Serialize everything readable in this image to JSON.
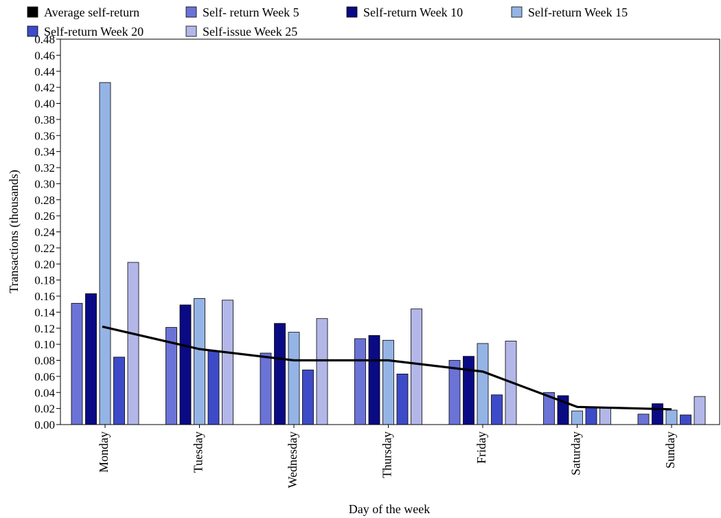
{
  "chart_data": {
    "type": "bar",
    "title": "",
    "xlabel": "Day of the week",
    "ylabel": "Transactions (thousands)",
    "ylim": [
      0,
      0.48
    ],
    "yticks": [
      "0.00",
      "0.02",
      "0.04",
      "0.06",
      "0.08",
      "0.10",
      "0.12",
      "0.14",
      "0.16",
      "0.18",
      "0.20",
      "0.22",
      "0.24",
      "0.26",
      "0.28",
      "0.30",
      "0.32",
      "0.34",
      "0.36",
      "0.38",
      "0.40",
      "0.42",
      "0.44",
      "0.46",
      "0.48"
    ],
    "categories": [
      "Monday",
      "Tuesday",
      "Wednesday",
      "Thursday",
      "Friday",
      "Saturday",
      "Sunday"
    ],
    "grid": false,
    "legend_position": "top",
    "line_series": {
      "name": "Average self-return",
      "color": "#000000",
      "values": [
        0.122,
        0.094,
        0.08,
        0.08,
        0.066,
        0.022,
        0.019
      ]
    },
    "series": [
      {
        "name": "Self- return Week 5",
        "color": "#6b73d6",
        "values": [
          0.151,
          0.121,
          0.089,
          0.107,
          0.08,
          0.04,
          0.013
        ]
      },
      {
        "name": "Self-return Week 10",
        "color": "#0a0a84",
        "values": [
          0.163,
          0.149,
          0.126,
          0.111,
          0.085,
          0.036,
          0.026
        ]
      },
      {
        "name": "Self-return Week  15",
        "color": "#95b4e6",
        "values": [
          0.426,
          0.157,
          0.115,
          0.105,
          0.101,
          0.017,
          0.018
        ]
      },
      {
        "name": "Self-return Week 20",
        "color": "#3d4bc8",
        "values": [
          0.084,
          0.092,
          0.068,
          0.063,
          0.037,
          0.021,
          0.012
        ]
      },
      {
        "name": "Self-issue Week 25",
        "color": "#b3b7e8",
        "values": [
          0.202,
          0.155,
          0.132,
          0.144,
          0.104,
          0.021,
          0.035
        ]
      }
    ]
  }
}
